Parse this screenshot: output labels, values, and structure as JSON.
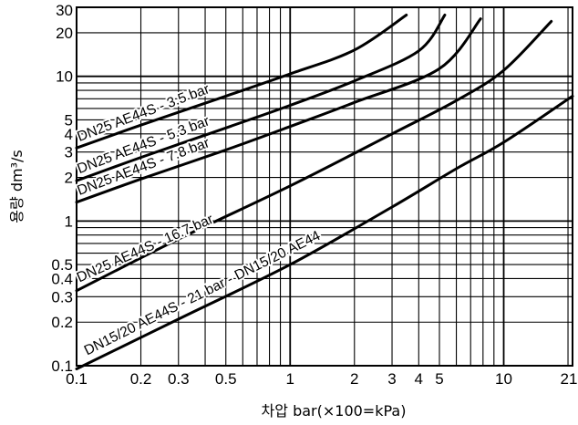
{
  "chart_data": {
    "type": "line",
    "x_scale": "log",
    "y_scale": "log",
    "xlim": [
      0.1,
      21
    ],
    "ylim": [
      0.1,
      30
    ],
    "xlabel": "차압 bar(×100=kPa)",
    "ylabel": "용량 dm³/s",
    "x_ticks": [
      {
        "value": 0.1,
        "label": "0.1"
      },
      {
        "value": 0.2,
        "label": "0.2"
      },
      {
        "value": 0.3,
        "label": "0.3"
      },
      {
        "value": 0.5,
        "label": "0.5"
      },
      {
        "value": 1,
        "label": "1"
      },
      {
        "value": 2,
        "label": "2"
      },
      {
        "value": 3,
        "label": "3"
      },
      {
        "value": 4,
        "label": "4"
      },
      {
        "value": 5,
        "label": "5"
      },
      {
        "value": 10,
        "label": "10"
      },
      {
        "value": 21,
        "label": "21"
      }
    ],
    "y_ticks": [
      {
        "value": 0.1,
        "label": "0.1"
      },
      {
        "value": 0.2,
        "label": "0.2"
      },
      {
        "value": 0.3,
        "label": "0.3"
      },
      {
        "value": 0.4,
        "label": "0.4"
      },
      {
        "value": 0.5,
        "label": "0.5"
      },
      {
        "value": 1,
        "label": "1"
      },
      {
        "value": 2,
        "label": "2"
      },
      {
        "value": 3,
        "label": "3"
      },
      {
        "value": 4,
        "label": "4"
      },
      {
        "value": 5,
        "label": "5"
      },
      {
        "value": 10,
        "label": "10"
      },
      {
        "value": 20,
        "label": "20"
      },
      {
        "value": 30,
        "label": "30"
      }
    ],
    "grid": true,
    "series": [
      {
        "name": "DN25 AE44S - 3.5 bar",
        "points": [
          [
            0.1,
            3.2
          ],
          [
            0.2,
            4.6
          ],
          [
            0.5,
            7.3
          ],
          [
            1,
            10.4
          ],
          [
            2,
            15.2
          ],
          [
            3.5,
            26.5
          ]
        ]
      },
      {
        "name": "DN25 AE44S - 5.3 bar",
        "points": [
          [
            0.1,
            1.9
          ],
          [
            0.2,
            2.75
          ],
          [
            0.5,
            4.4
          ],
          [
            1,
            6.3
          ],
          [
            2,
            9.3
          ],
          [
            4,
            15.0
          ],
          [
            5.3,
            26.5
          ]
        ]
      },
      {
        "name": "DN25 AE44S - 7.8 bar",
        "points": [
          [
            0.1,
            1.35
          ],
          [
            0.2,
            1.95
          ],
          [
            0.5,
            3.1
          ],
          [
            1,
            4.5
          ],
          [
            2,
            6.6
          ],
          [
            5,
            11.3
          ],
          [
            7.8,
            25.0
          ]
        ]
      },
      {
        "name": "DN25 AE44S - 16.7 bar",
        "points": [
          [
            0.1,
            0.33
          ],
          [
            0.3,
            0.75
          ],
          [
            1,
            1.75
          ],
          [
            3,
            4.0
          ],
          [
            6,
            6.8
          ],
          [
            10,
            11.0
          ],
          [
            16.7,
            24.0
          ]
        ]
      },
      {
        "name": "DN15/20 AE44S - 21 bar - DN15/20 AE44",
        "points": [
          [
            0.1,
            0.095
          ],
          [
            0.3,
            0.21
          ],
          [
            1,
            0.5
          ],
          [
            3,
            1.25
          ],
          [
            6,
            2.3
          ],
          [
            10,
            3.5
          ],
          [
            21,
            7.3
          ]
        ]
      }
    ],
    "curve_labels": [
      {
        "text": "DN25 AE44S - 3.5 bar"
      },
      {
        "text": "DN25 AE44S - 5.3 bar"
      },
      {
        "text": "DN25 AE44S - 7.8 bar"
      },
      {
        "text": "DN25 AE44S - 16.7 bar"
      },
      {
        "text": "DN15/20 AE44S - 21 bar - DN15/20 AE44"
      }
    ]
  }
}
